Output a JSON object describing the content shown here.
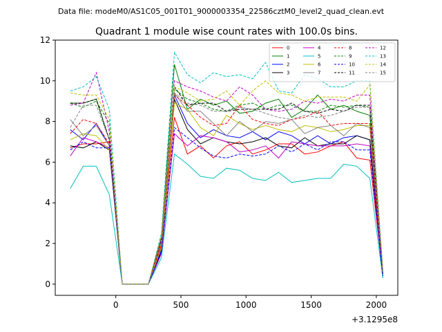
{
  "figure": {
    "suptitle": "Data file: modeM0/AS1C05_001T01_9000003354_22586cztM0_level2_quad_clean.evt"
  },
  "chart_data": {
    "type": "line",
    "title": "Quadrant 1 module wise count rates with 100.0s bins.",
    "xlabel": "",
    "ylabel": "",
    "x_offset_label": "+3.1295e8",
    "xlim": [
      -465,
      2165
    ],
    "ylim": [
      -0.55,
      12.0
    ],
    "xticks": [
      0,
      500,
      1000,
      1500,
      2000
    ],
    "xtick_labels": [
      "0",
      "500",
      "1000",
      "1500",
      "2000"
    ],
    "yticks": [
      0,
      2,
      4,
      6,
      8,
      10,
      12
    ],
    "ytick_labels": [
      "0",
      "2",
      "4",
      "6",
      "8",
      "10",
      "12"
    ],
    "grid": false,
    "legend_position": "top-right",
    "legend_columns": 4,
    "x": [
      -350,
      -250,
      -150,
      -50,
      50,
      150,
      250,
      350,
      450,
      550,
      650,
      750,
      850,
      950,
      1050,
      1150,
      1250,
      1350,
      1450,
      1550,
      1650,
      1750,
      1850,
      1950,
      2050
    ],
    "series": [
      {
        "name": "0",
        "color": "#ff0000",
        "dash": "solid",
        "values": [
          6.7,
          6.9,
          6.9,
          7.0,
          0.0,
          0.0,
          0.0,
          1.9,
          8.2,
          6.4,
          6.8,
          6.2,
          6.8,
          7.0,
          6.4,
          6.6,
          6.9,
          6.9,
          6.4,
          6.5,
          6.8,
          7.0,
          6.2,
          6.1,
          0.5
        ]
      },
      {
        "name": "1",
        "color": "#008000",
        "dash": "solid",
        "values": [
          8.9,
          8.9,
          9.1,
          7.1,
          0.0,
          0.0,
          0.0,
          2.3,
          10.8,
          8.6,
          9.1,
          8.8,
          9.0,
          8.4,
          8.5,
          8.9,
          9.1,
          8.2,
          8.6,
          9.3,
          8.6,
          8.8,
          8.5,
          8.3,
          0.6
        ]
      },
      {
        "name": "2",
        "color": "#0000ff",
        "dash": "solid",
        "values": [
          7.6,
          7.1,
          7.9,
          6.8,
          0.0,
          0.0,
          0.0,
          1.7,
          9.3,
          7.9,
          7.2,
          7.6,
          7.3,
          7.2,
          7.5,
          7.1,
          7.5,
          7.3,
          6.9,
          7.3,
          6.9,
          7.2,
          7.3,
          7.1,
          0.4
        ]
      },
      {
        "name": "3",
        "color": "#000000",
        "dash": "solid",
        "values": [
          6.8,
          6.7,
          7.0,
          6.6,
          0.0,
          0.0,
          0.0,
          1.6,
          9.1,
          7.6,
          6.9,
          7.2,
          7.0,
          6.9,
          7.0,
          7.2,
          6.8,
          6.7,
          7.2,
          6.8,
          6.9,
          6.9,
          7.3,
          7.1,
          0.4
        ]
      },
      {
        "name": "4",
        "color": "#bf00bf",
        "dash": "solid",
        "values": [
          6.3,
          7.2,
          7.0,
          6.7,
          0.0,
          0.0,
          0.0,
          1.5,
          7.4,
          6.8,
          7.3,
          7.2,
          7.0,
          6.5,
          6.6,
          6.8,
          6.2,
          7.0,
          6.9,
          6.8,
          6.8,
          6.8,
          6.9,
          6.8,
          0.3
        ]
      },
      {
        "name": "5",
        "color": "#00bfbf",
        "dash": "solid",
        "values": [
          4.7,
          5.8,
          5.8,
          4.4,
          0.0,
          0.0,
          0.0,
          1.3,
          6.4,
          5.9,
          5.3,
          5.2,
          5.7,
          5.6,
          5.2,
          5.1,
          5.5,
          5.0,
          5.1,
          5.2,
          5.2,
          5.9,
          5.8,
          5.2,
          0.3
        ]
      },
      {
        "name": "6",
        "color": "#bfbf00",
        "dash": "solid",
        "values": [
          7.1,
          7.4,
          7.3,
          6.6,
          0.0,
          0.0,
          0.0,
          1.8,
          8.9,
          8.6,
          7.7,
          7.3,
          8.3,
          7.9,
          7.6,
          7.8,
          7.6,
          7.5,
          7.8,
          7.7,
          7.5,
          7.6,
          7.8,
          7.8,
          0.5
        ]
      },
      {
        "name": "7",
        "color": "#808080",
        "dash": "solid",
        "values": [
          8.1,
          7.3,
          7.8,
          6.8,
          0.0,
          0.0,
          0.0,
          2.0,
          9.4,
          8.5,
          8.5,
          7.9,
          7.3,
          8.0,
          7.5,
          8.0,
          7.9,
          8.1,
          7.4,
          7.7,
          7.8,
          7.3,
          7.9,
          7.7,
          0.5
        ]
      },
      {
        "name": "8",
        "color": "#ff0000",
        "dash": "dashed",
        "values": [
          7.4,
          8.1,
          7.9,
          6.9,
          0.0,
          0.0,
          0.0,
          2.0,
          9.3,
          8.8,
          8.2,
          7.8,
          7.9,
          8.8,
          8.1,
          7.9,
          7.8,
          8.1,
          8.2,
          8.5,
          7.8,
          7.9,
          7.9,
          7.9,
          0.5
        ]
      },
      {
        "name": "9",
        "color": "#008000",
        "dash": "dashed",
        "values": [
          8.9,
          8.7,
          9.0,
          7.9,
          0.0,
          0.0,
          0.0,
          2.2,
          9.6,
          9.1,
          8.9,
          8.6,
          8.5,
          8.8,
          8.9,
          8.6,
          8.8,
          8.8,
          8.5,
          8.5,
          8.8,
          8.7,
          8.8,
          8.7,
          0.6
        ]
      },
      {
        "name": "10",
        "color": "#0000ff",
        "dash": "dashed",
        "values": [
          6.6,
          7.0,
          6.7,
          6.7,
          0.0,
          0.0,
          0.0,
          1.6,
          7.7,
          7.2,
          6.7,
          6.3,
          6.2,
          6.4,
          6.3,
          6.4,
          6.8,
          6.5,
          6.9,
          6.6,
          7.0,
          7.0,
          6.6,
          6.6,
          0.4
        ]
      },
      {
        "name": "11",
        "color": "#000000",
        "dash": "dashed",
        "values": [
          8.9,
          8.9,
          9.1,
          7.1,
          0.0,
          0.0,
          0.0,
          2.2,
          9.7,
          8.8,
          8.9,
          8.9,
          8.5,
          8.6,
          8.6,
          8.6,
          8.6,
          8.9,
          8.5,
          8.4,
          8.6,
          8.5,
          8.8,
          8.8,
          0.6
        ]
      },
      {
        "name": "12",
        "color": "#bf00bf",
        "dash": "dashed",
        "values": [
          8.8,
          8.9,
          10.4,
          7.5,
          0.0,
          0.0,
          0.0,
          2.3,
          10.0,
          9.7,
          9.5,
          9.2,
          9.0,
          9.7,
          9.3,
          8.6,
          8.5,
          8.6,
          9.0,
          8.9,
          9.1,
          9.0,
          9.3,
          9.3,
          0.6
        ]
      },
      {
        "name": "13",
        "color": "#00bfbf",
        "dash": "dashed",
        "values": [
          9.5,
          9.7,
          10.2,
          8.6,
          0.0,
          0.0,
          0.0,
          2.5,
          11.4,
          10.3,
          9.9,
          10.4,
          10.2,
          10.3,
          10.1,
          10.9,
          9.5,
          9.4,
          10.3,
          10.1,
          9.7,
          9.7,
          10.0,
          10.0,
          0.7
        ]
      },
      {
        "name": "14",
        "color": "#bfbf00",
        "dash": "dashed",
        "values": [
          9.4,
          9.3,
          9.3,
          8.1,
          0.0,
          0.0,
          0.0,
          2.4,
          9.7,
          9.4,
          9.0,
          9.1,
          9.5,
          8.8,
          9.5,
          10.0,
          9.4,
          9.3,
          9.0,
          9.2,
          9.2,
          9.2,
          9.0,
          9.8,
          0.6
        ]
      },
      {
        "name": "15",
        "color": "#808080",
        "dash": "dashed",
        "values": [
          7.7,
          8.8,
          8.8,
          7.1,
          0.0,
          0.0,
          0.0,
          2.1,
          9.4,
          8.9,
          8.8,
          8.5,
          8.5,
          8.7,
          8.6,
          8.4,
          8.2,
          8.1,
          8.3,
          8.2,
          8.3,
          8.5,
          8.7,
          8.7,
          0.6
        ]
      }
    ]
  }
}
